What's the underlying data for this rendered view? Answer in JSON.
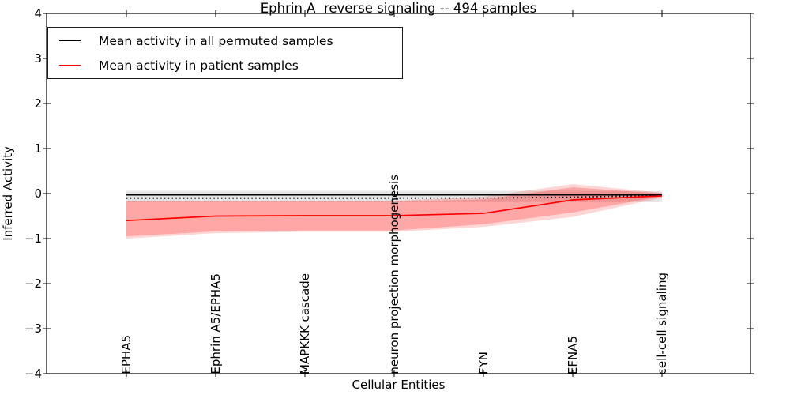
{
  "title": "Ephrin A  reverse signaling -- 494 samples",
  "axes": {
    "xlabel": "Cellular Entities",
    "ylabel": "Inferred Activity",
    "ytick_labels": [
      "4",
      "3",
      "2",
      "1",
      "0",
      "−1",
      "−2",
      "−3",
      "−4"
    ]
  },
  "legend": {
    "items": [
      {
        "label": "Mean activity in all permuted samples",
        "color": "#000000"
      },
      {
        "label": "Mean activity in patient samples",
        "color": "#ff0000"
      }
    ]
  },
  "chart_data": {
    "type": "line",
    "title": "Ephrin A  reverse signaling -- 494 samples",
    "xlabel": "Cellular Entities",
    "ylabel": "Inferred Activity",
    "ylim": [
      -4,
      4
    ],
    "yticks": [
      4,
      3,
      2,
      1,
      0,
      -1,
      -2,
      -3,
      -4
    ],
    "grid": false,
    "legend_position": "upper left",
    "categories": [
      "EPHA5",
      "Ephrin A5/EPHA5",
      "MAPKKK cascade",
      "neuron projection morphogenesis",
      "FYN",
      "EFNA5",
      "cell-cell signaling"
    ],
    "series": [
      {
        "name": "Mean activity in all permuted samples",
        "color": "#000000",
        "line_style": "solid",
        "width": 1.6,
        "values": [
          -0.03,
          -0.03,
          -0.03,
          -0.03,
          -0.03,
          -0.03,
          -0.03
        ]
      },
      {
        "name": "Permuted samples dotted reference",
        "color": "#000000",
        "line_style": "dotted",
        "width": 1.8,
        "values": [
          -0.1,
          -0.1,
          -0.1,
          -0.1,
          -0.1,
          -0.08,
          -0.04
        ]
      },
      {
        "name": "Mean activity in patient samples",
        "color": "#ff0000",
        "line_style": "solid",
        "width": 1.7,
        "values": [
          -0.6,
          -0.5,
          -0.49,
          -0.49,
          -0.44,
          -0.14,
          -0.05
        ]
      }
    ],
    "bands": [
      {
        "name": "permuted-range",
        "fill": "rgba(0,0,0,0.10)",
        "top": [
          0.06,
          0.06,
          0.06,
          0.06,
          0.06,
          0.06,
          0.05
        ],
        "bottom": [
          -0.19,
          -0.19,
          -0.19,
          -0.19,
          -0.19,
          -0.19,
          -0.19
        ]
      },
      {
        "name": "patient-range-outer",
        "fill": "rgba(255,0,0,0.16)",
        "top": [
          -0.16,
          -0.16,
          -0.16,
          -0.16,
          -0.07,
          0.21,
          0.02
        ],
        "bottom": [
          -1.0,
          -0.88,
          -0.85,
          -0.85,
          -0.74,
          -0.52,
          -0.09
        ]
      },
      {
        "name": "patient-range-inner",
        "fill": "rgba(255,0,0,0.22)",
        "top": [
          -0.18,
          -0.18,
          -0.18,
          -0.18,
          -0.13,
          0.14,
          0.0
        ],
        "bottom": [
          -0.95,
          -0.84,
          -0.82,
          -0.82,
          -0.68,
          -0.42,
          -0.06
        ]
      }
    ]
  }
}
